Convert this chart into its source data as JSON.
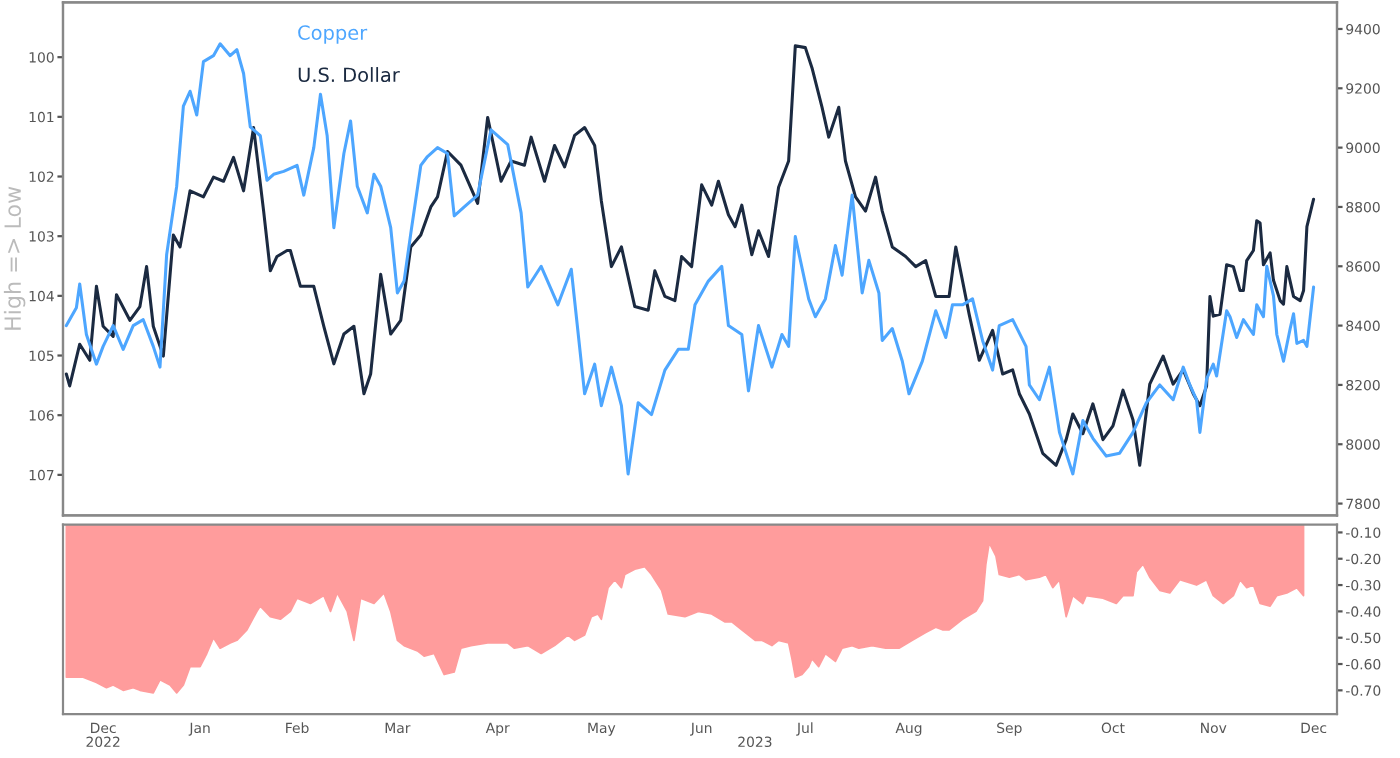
{
  "chart_data": [
    {
      "type": "line",
      "legend": "top left",
      "ylabel": "High => Low",
      "tick_labels": "y",
      "xlim": [
        "2022-12-06",
        "2023-12-22"
      ],
      "ylim": [
        107.68,
        99.08
      ],
      "yticks": [
        100,
        101,
        102,
        103,
        104,
        105,
        106,
        107
      ],
      "y2lim": [
        7760,
        9490
      ],
      "y2ticks": [
        7800,
        8000,
        8200,
        8400,
        8600,
        8800,
        9000,
        9200,
        9400
      ],
      "series": [
        {
          "name": "Copper",
          "color": "#4da6ff",
          "axis": "y2",
          "x": [
            "2022-12-07",
            "2022-12-10",
            "2022-12-11",
            "2022-12-13",
            "2022-12-16",
            "2022-12-18",
            "2022-12-21",
            "2022-12-24",
            "2022-12-27",
            "2022-12-30",
            "2023-01-02",
            "2023-01-04",
            "2023-01-06",
            "2023-01-09",
            "2023-01-11",
            "2023-01-13",
            "2023-01-15",
            "2023-01-17",
            "2023-01-20",
            "2023-01-22",
            "2023-01-25",
            "2023-01-27",
            "2023-01-29",
            "2023-01-31",
            "2023-02-03",
            "2023-02-05",
            "2023-02-07",
            "2023-02-10",
            "2023-02-14",
            "2023-02-16",
            "2023-02-19",
            "2023-02-21",
            "2023-02-23",
            "2023-02-25",
            "2023-02-28",
            "2023-03-02",
            "2023-03-04",
            "2023-03-07",
            "2023-03-09",
            "2023-03-11",
            "2023-03-14",
            "2023-03-16",
            "2023-03-18",
            "2023-03-20",
            "2023-03-23",
            "2023-03-25",
            "2023-03-28",
            "2023-03-31",
            "2023-04-02",
            "2023-04-05",
            "2023-04-09",
            "2023-04-13",
            "2023-04-18",
            "2023-04-22",
            "2023-04-24",
            "2023-04-28",
            "2023-05-03",
            "2023-05-07",
            "2023-05-11",
            "2023-05-14",
            "2023-05-16",
            "2023-05-19",
            "2023-05-22",
            "2023-05-24",
            "2023-05-27",
            "2023-05-31",
            "2023-06-04",
            "2023-06-08",
            "2023-06-11",
            "2023-06-13",
            "2023-06-17",
            "2023-06-21",
            "2023-06-23",
            "2023-06-27",
            "2023-06-29",
            "2023-07-02",
            "2023-07-06",
            "2023-07-09",
            "2023-07-11",
            "2023-07-13",
            "2023-07-17",
            "2023-07-19",
            "2023-07-22",
            "2023-07-25",
            "2023-07-27",
            "2023-07-30",
            "2023-08-02",
            "2023-08-04",
            "2023-08-07",
            "2023-08-08",
            "2023-08-11",
            "2023-08-14",
            "2023-08-16",
            "2023-08-20",
            "2023-08-24",
            "2023-08-27",
            "2023-08-29",
            "2023-09-01",
            "2023-09-04",
            "2023-09-07",
            "2023-09-10",
            "2023-09-12",
            "2023-09-16",
            "2023-09-20",
            "2023-09-21",
            "2023-09-24",
            "2023-09-27",
            "2023-09-30",
            "2023-10-04",
            "2023-10-07",
            "2023-10-10",
            "2023-10-14",
            "2023-10-18",
            "2023-10-22",
            "2023-10-26",
            "2023-10-30",
            "2023-11-03",
            "2023-11-06",
            "2023-11-08",
            "2023-11-10",
            "2023-11-11",
            "2023-11-13",
            "2023-11-15",
            "2023-11-16",
            "2023-11-19",
            "2023-11-20",
            "2023-11-22",
            "2023-11-24",
            "2023-11-27",
            "2023-11-28",
            "2023-11-30",
            "2023-12-01",
            "2023-12-03",
            "2023-12-04",
            "2023-12-06",
            "2023-12-08",
            "2023-12-09",
            "2023-12-10",
            "2023-12-12",
            "2023-12-13",
            "2023-12-15"
          ],
          "values": [
            8400,
            8460,
            8540,
            8370,
            8270,
            8330,
            8400,
            8320,
            8400,
            8420,
            8330,
            8260,
            8640,
            8870,
            9140,
            9190,
            9110,
            9290,
            9310,
            9350,
            9310,
            9330,
            9250,
            9070,
            9040,
            8890,
            8910,
            8920,
            8940,
            8840,
            9000,
            9180,
            9040,
            8730,
            8980,
            9090,
            8870,
            8780,
            8910,
            8870,
            8730,
            8510,
            8550,
            8710,
            8940,
            8970,
            9000,
            8980,
            8770,
            8800,
            8840,
            9060,
            9010,
            8780,
            8530,
            8600,
            8470,
            8590,
            8170,
            8270,
            8130,
            8260,
            8130,
            7900,
            8140,
            8100,
            8250,
            8320,
            8320,
            8470,
            8550,
            8600,
            8400,
            8370,
            8180,
            8400,
            8260,
            8370,
            8330,
            8700,
            8490,
            8430,
            8490,
            8670,
            8570,
            8840,
            8510,
            8620,
            8510,
            8350,
            8390,
            8280,
            8170,
            8280,
            8450,
            8360,
            8470,
            8470,
            8490,
            8350,
            8250,
            8400,
            8420,
            8330,
            8200,
            8150,
            8260,
            8040,
            7900,
            8080,
            8020,
            7960,
            7970,
            8040,
            8140,
            8200,
            8150,
            8260,
            8200,
            8150,
            8040,
            8220,
            8270,
            8230,
            8450,
            8430,
            8360,
            8420,
            8370,
            8470,
            8430,
            8600,
            8500,
            8370,
            8280,
            8390,
            8440,
            8340,
            8350,
            8330,
            8530
          ]
        },
        {
          "name": "U.S. Dollar",
          "color": "#1b2a41",
          "x": [
            "2022-12-07",
            "2022-12-08",
            "2022-12-11",
            "2022-12-14",
            "2022-12-16",
            "2022-12-18",
            "2022-12-21",
            "2022-12-22",
            "2022-12-26",
            "2022-12-29",
            "2022-12-31",
            "2023-01-02",
            "2023-01-05",
            "2023-01-08",
            "2023-01-10",
            "2023-01-13",
            "2023-01-17",
            "2023-01-20",
            "2023-01-23",
            "2023-01-26",
            "2023-01-29",
            "2023-02-01",
            "2023-02-04",
            "2023-02-06",
            "2023-02-08",
            "2023-02-11",
            "2023-02-12",
            "2023-02-15",
            "2023-02-19",
            "2023-02-22",
            "2023-02-25",
            "2023-02-28",
            "2023-03-03",
            "2023-03-06",
            "2023-03-08",
            "2023-03-11",
            "2023-03-14",
            "2023-03-17",
            "2023-03-20",
            "2023-03-23",
            "2023-03-26",
            "2023-03-28",
            "2023-03-31",
            "2023-04-04",
            "2023-04-09",
            "2023-04-12",
            "2023-04-16",
            "2023-04-19",
            "2023-04-23",
            "2023-04-25",
            "2023-04-29",
            "2023-05-02",
            "2023-05-05",
            "2023-05-08",
            "2023-05-11",
            "2023-05-14",
            "2023-05-16",
            "2023-05-19",
            "2023-05-22",
            "2023-05-26",
            "2023-05-30",
            "2023-06-01",
            "2023-06-04",
            "2023-06-07",
            "2023-06-09",
            "2023-06-12",
            "2023-06-15",
            "2023-06-18",
            "2023-06-20",
            "2023-06-23",
            "2023-06-25",
            "2023-06-27",
            "2023-06-30",
            "2023-07-02",
            "2023-07-05",
            "2023-07-08",
            "2023-07-11",
            "2023-07-13",
            "2023-07-16",
            "2023-07-18",
            "2023-07-21",
            "2023-07-23",
            "2023-07-26",
            "2023-07-28",
            "2023-07-31",
            "2023-08-03",
            "2023-08-06",
            "2023-08-08",
            "2023-08-11",
            "2023-08-15",
            "2023-08-18",
            "2023-08-21",
            "2023-08-24",
            "2023-08-28",
            "2023-08-30",
            "2023-09-03",
            "2023-09-06",
            "2023-09-10",
            "2023-09-13",
            "2023-09-16",
            "2023-09-18",
            "2023-09-21",
            "2023-09-25",
            "2023-09-29",
            "2023-10-02",
            "2023-10-04",
            "2023-10-07",
            "2023-10-10",
            "2023-10-13",
            "2023-10-16",
            "2023-10-19",
            "2023-10-22",
            "2023-10-24",
            "2023-10-27",
            "2023-10-31",
            "2023-11-03",
            "2023-11-06",
            "2023-11-09",
            "2023-11-11",
            "2023-11-13",
            "2023-11-14",
            "2023-11-15",
            "2023-11-17",
            "2023-11-19",
            "2023-11-21",
            "2023-11-23",
            "2023-11-24",
            "2023-11-25",
            "2023-11-27",
            "2023-11-28",
            "2023-11-29",
            "2023-11-30",
            "2023-12-02",
            "2023-12-03",
            "2023-12-05",
            "2023-12-06",
            "2023-12-07",
            "2023-12-09",
            "2023-12-11",
            "2023-12-12",
            "2023-12-13",
            "2023-12-15"
          ],
          "values": [
            105.31,
            105.51,
            104.81,
            105.08,
            103.84,
            104.51,
            104.68,
            103.98,
            104.41,
            104.18,
            103.51,
            104.51,
            105.01,
            102.98,
            103.18,
            102.24,
            102.34,
            102.01,
            102.08,
            101.68,
            102.24,
            101.18,
            102.58,
            103.58,
            103.34,
            103.24,
            103.24,
            103.84,
            103.84,
            104.51,
            105.14,
            104.64,
            104.51,
            105.64,
            105.31,
            103.64,
            104.64,
            104.41,
            103.18,
            102.98,
            102.51,
            102.34,
            101.58,
            101.81,
            102.45,
            101.01,
            102.08,
            101.74,
            101.81,
            101.34,
            102.08,
            101.48,
            101.84,
            101.31,
            101.18,
            101.48,
            102.41,
            103.51,
            103.18,
            104.18,
            104.24,
            103.58,
            104.01,
            104.08,
            103.34,
            103.51,
            102.14,
            102.48,
            102.08,
            102.64,
            102.84,
            102.48,
            103.31,
            102.91,
            103.34,
            102.18,
            101.74,
            99.81,
            99.84,
            100.18,
            100.84,
            101.34,
            100.84,
            101.74,
            102.34,
            102.58,
            102.01,
            102.58,
            103.18,
            103.34,
            103.51,
            103.41,
            104.01,
            104.01,
            103.18,
            104.31,
            105.08,
            104.58,
            105.31,
            105.24,
            105.64,
            105.98,
            106.64,
            106.84,
            106.41,
            105.98,
            106.31,
            105.81,
            106.41,
            106.18,
            105.58,
            106.08,
            106.84,
            105.48,
            105.01,
            105.48,
            105.24,
            105.64,
            105.84,
            105.51,
            104.01,
            104.34,
            104.31,
            103.48,
            103.51,
            103.91,
            103.91,
            103.41,
            103.24,
            102.74,
            102.78,
            103.48,
            103.28,
            103.74,
            104.08,
            104.14,
            103.51,
            104.01,
            104.08,
            103.91,
            102.84,
            102.38
          ]
        }
      ]
    },
    {
      "type": "area",
      "annotations": [
        "2022",
        "2023"
      ],
      "xlim": [
        "2022-12-06",
        "2023-12-22"
      ],
      "xticks": [
        {
          "value": "2022-12-18",
          "label": "Dec"
        },
        {
          "value": "2023-01-16",
          "label": "Jan"
        },
        {
          "value": "2023-02-14",
          "label": "Feb"
        },
        {
          "value": "2023-03-16",
          "label": "Mar"
        },
        {
          "value": "2023-04-15",
          "label": "Apr"
        },
        {
          "value": "2023-05-16",
          "label": "May"
        },
        {
          "value": "2023-06-15",
          "label": "Jun"
        },
        {
          "value": "2023-07-16",
          "label": "Jul"
        },
        {
          "value": "2023-08-16",
          "label": "Aug"
        },
        {
          "value": "2023-09-15",
          "label": "Sep"
        },
        {
          "value": "2023-10-16",
          "label": "Oct"
        },
        {
          "value": "2023-11-15",
          "label": "Nov"
        },
        {
          "value": "2023-12-15",
          "label": "Dec"
        }
      ],
      "y2lim": [
        -0.79,
        -0.07
      ],
      "y2ticks": [
        {
          "value": -0.7,
          "label": "-0.70"
        },
        {
          "value": -0.6,
          "label": "-0.60"
        },
        {
          "value": -0.5,
          "label": "-0.50"
        },
        {
          "value": -0.4,
          "label": "-0.40"
        },
        {
          "value": -0.3,
          "label": "-0.30"
        },
        {
          "value": -0.2,
          "label": "-0.20"
        },
        {
          "value": -0.1,
          "label": "-0.10"
        }
      ],
      "series": [
        {
          "color": "#ff9c9c",
          "axis": "y2",
          "x": [
            "2022-12-07",
            "2022-12-12",
            "2022-12-16",
            "2022-12-19",
            "2022-12-21",
            "2022-12-24",
            "2022-12-27",
            "2022-12-29",
            "2023-01-02",
            "2023-01-04",
            "2023-01-07",
            "2023-01-09",
            "2023-01-11",
            "2023-01-13",
            "2023-01-16",
            "2023-01-18",
            "2023-01-20",
            "2023-01-22",
            "2023-01-25",
            "2023-01-27",
            "2023-01-30",
            "2023-02-02",
            "2023-02-03",
            "2023-02-06",
            "2023-02-09",
            "2023-02-12",
            "2023-02-14",
            "2023-02-18",
            "2023-02-22",
            "2023-02-24",
            "2023-02-26",
            "2023-03-01",
            "2023-03-03",
            "2023-03-05",
            "2023-03-09",
            "2023-03-12",
            "2023-03-14",
            "2023-03-16",
            "2023-03-18",
            "2023-03-22",
            "2023-03-24",
            "2023-03-27",
            "2023-03-30",
            "2023-04-02",
            "2023-04-04",
            "2023-04-07",
            "2023-04-12",
            "2023-04-18",
            "2023-04-20",
            "2023-04-24",
            "2023-04-28",
            "2023-05-02",
            "2023-05-06",
            "2023-05-08",
            "2023-05-11",
            "2023-05-13",
            "2023-05-15",
            "2023-05-16",
            "2023-05-18",
            "2023-05-20",
            "2023-05-22",
            "2023-05-23",
            "2023-05-26",
            "2023-05-29",
            "2023-05-31",
            "2023-06-03",
            "2023-06-05",
            "2023-06-10",
            "2023-06-14",
            "2023-06-18",
            "2023-06-22",
            "2023-06-24",
            "2023-06-27",
            "2023-07-01",
            "2023-07-03",
            "2023-07-06",
            "2023-07-08",
            "2023-07-11",
            "2023-07-12",
            "2023-07-13",
            "2023-07-15",
            "2023-07-17",
            "2023-07-18",
            "2023-07-20",
            "2023-07-22",
            "2023-07-25",
            "2023-07-27",
            "2023-07-30",
            "2023-08-01",
            "2023-08-05",
            "2023-08-09",
            "2023-08-13",
            "2023-08-17",
            "2023-08-21",
            "2023-08-24",
            "2023-08-26",
            "2023-08-28",
            "2023-09-01",
            "2023-09-05",
            "2023-09-07",
            "2023-09-08",
            "2023-09-09",
            "2023-09-11",
            "2023-09-12",
            "2023-09-15",
            "2023-09-18",
            "2023-09-20",
            "2023-09-24",
            "2023-09-26",
            "2023-09-28",
            "2023-09-30",
            "2023-10-02",
            "2023-10-04",
            "2023-10-07",
            "2023-10-08",
            "2023-10-13",
            "2023-10-17",
            "2023-10-19",
            "2023-10-22",
            "2023-10-23",
            "2023-10-25",
            "2023-10-27",
            "2023-10-30",
            "2023-11-02",
            "2023-11-05",
            "2023-11-10",
            "2023-11-13",
            "2023-11-15",
            "2023-11-18",
            "2023-11-21",
            "2023-11-23",
            "2023-11-25",
            "2023-11-27",
            "2023-11-29",
            "2023-12-02",
            "2023-12-04",
            "2023-12-07",
            "2023-12-10",
            "2023-12-12"
          ],
          "values": [
            -0.65,
            -0.65,
            -0.67,
            -0.69,
            -0.68,
            -0.7,
            -0.69,
            -0.7,
            -0.71,
            -0.66,
            -0.68,
            -0.71,
            -0.68,
            -0.61,
            -0.61,
            -0.56,
            -0.5,
            -0.54,
            -0.52,
            -0.51,
            -0.47,
            -0.4,
            -0.38,
            -0.42,
            -0.43,
            -0.4,
            -0.35,
            -0.37,
            -0.34,
            -0.4,
            -0.33,
            -0.4,
            -0.51,
            -0.35,
            -0.37,
            -0.33,
            -0.4,
            -0.51,
            -0.53,
            -0.55,
            -0.57,
            -0.56,
            -0.64,
            -0.63,
            -0.54,
            -0.53,
            -0.52,
            -0.52,
            -0.54,
            -0.53,
            -0.56,
            -0.53,
            -0.49,
            -0.51,
            -0.49,
            -0.42,
            -0.41,
            -0.43,
            -0.31,
            -0.28,
            -0.31,
            -0.26,
            -0.24,
            -0.23,
            -0.26,
            -0.32,
            -0.41,
            -0.42,
            -0.4,
            -0.41,
            -0.44,
            -0.44,
            -0.47,
            -0.51,
            -0.51,
            -0.53,
            -0.51,
            -0.52,
            -0.58,
            -0.65,
            -0.64,
            -0.61,
            -0.58,
            -0.61,
            -0.56,
            -0.59,
            -0.54,
            -0.53,
            -0.54,
            -0.53,
            -0.54,
            -0.54,
            -0.51,
            -0.48,
            -0.46,
            -0.47,
            -0.47,
            -0.43,
            -0.4,
            -0.36,
            -0.22,
            -0.14,
            -0.19,
            -0.26,
            -0.27,
            -0.26,
            -0.28,
            -0.27,
            -0.26,
            -0.31,
            -0.28,
            -0.42,
            -0.34,
            -0.37,
            -0.34,
            -0.35,
            -0.37,
            -0.34,
            -0.34,
            -0.25,
            -0.22,
            -0.27,
            -0.32,
            -0.33,
            -0.28,
            -0.3,
            -0.28,
            -0.34,
            -0.37,
            -0.34,
            -0.28,
            -0.31,
            -0.3,
            -0.37,
            -0.38,
            -0.34,
            -0.33,
            -0.31,
            -0.34
          ]
        }
      ]
    }
  ]
}
